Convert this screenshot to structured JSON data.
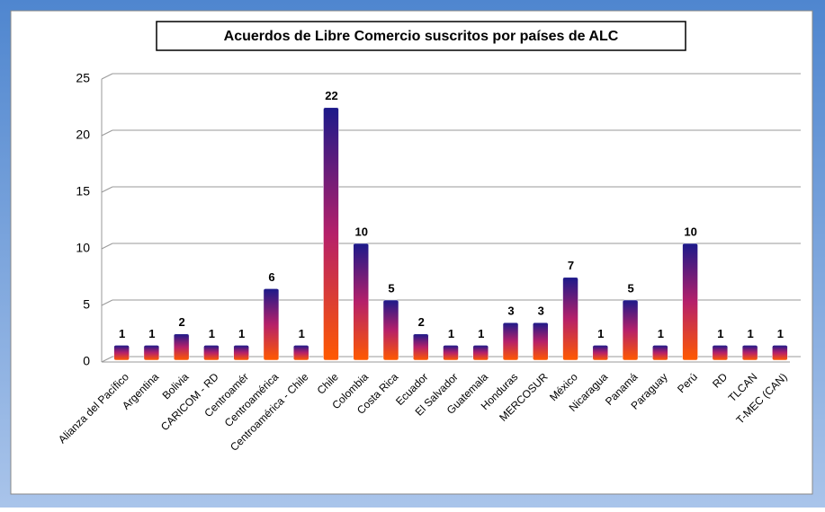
{
  "chart_data": {
    "type": "bar",
    "title": "Acuerdos de Libre Comercio suscritos por países de ALC",
    "categories": [
      "Alianza del Pacífico",
      "Argentina",
      "Bolivia",
      "CARICOM - RD",
      "Centroamér",
      "Centroamérica",
      "Centroamérica - Chile",
      "Chile",
      "Colombia",
      "Costa Rica",
      "Ecuador",
      "El Salvador",
      "Guatemala",
      "Honduras",
      "MERCOSUR",
      "México",
      "Nicaragua",
      "Panamá",
      "Paraguay",
      "Perú",
      "RD",
      "TLCAN",
      "T-MEC (CAN)"
    ],
    "values": [
      1,
      1,
      2,
      1,
      1,
      6,
      1,
      22,
      10,
      5,
      2,
      1,
      1,
      3,
      3,
      7,
      1,
      5,
      1,
      10,
      1,
      1,
      1
    ],
    "color": [
      "#1c1a8a",
      "#b5206a",
      "#ff5a00"
    ],
    "ylim": [
      0,
      25
    ],
    "yticks": [
      0,
      5,
      10,
      15,
      20,
      25
    ],
    "grid": true
  }
}
